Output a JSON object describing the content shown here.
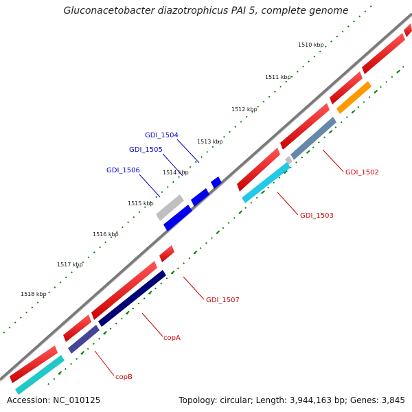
{
  "title": "Gluconacetobacter diazotrophicus PAI 5, complete genome",
  "footer": {
    "accession": "Accession: NC_010125",
    "summary": "Topology: circular; Length: 3,944,163 bp; Genes: 3,845"
  },
  "ticks": [
    {
      "label": "1510 kbp"
    },
    {
      "label": "1511 kbp"
    },
    {
      "label": "1512 kbp"
    },
    {
      "label": "1513 kbp"
    },
    {
      "label": "1514 kbp"
    },
    {
      "label": "1515 kbp"
    },
    {
      "label": "1516 kbp"
    },
    {
      "label": "1517 kbp"
    },
    {
      "label": "1518 kbp"
    }
  ],
  "genes": [
    {
      "name": "GDI_1502",
      "color": "#cc0000"
    },
    {
      "name": "GDI_1503",
      "color": "#cc0000"
    },
    {
      "name": "GDI_1504",
      "color": "#0000cc"
    },
    {
      "name": "GDI_1505",
      "color": "#0000cc"
    },
    {
      "name": "GDI_1506",
      "color": "#0000cc"
    },
    {
      "name": "GDI_1507",
      "color": "#cc0000"
    },
    {
      "name": "copA",
      "color": "#cc0000"
    },
    {
      "name": "copB",
      "color": "#cc0000"
    }
  ],
  "colors": {
    "backbone": "#777777",
    "gene_red": "#ee0000",
    "gene_blue": "#0000ee",
    "gene_gray": "#c0c0c0",
    "gene_cyan": "#22c8e8",
    "gene_teal": "#22c8c8",
    "gene_navy": "#000077",
    "gene_slate": "#6688aa",
    "gene_orange": "#ff9900",
    "gene_indigo": "#444499",
    "dots": "#008800"
  }
}
